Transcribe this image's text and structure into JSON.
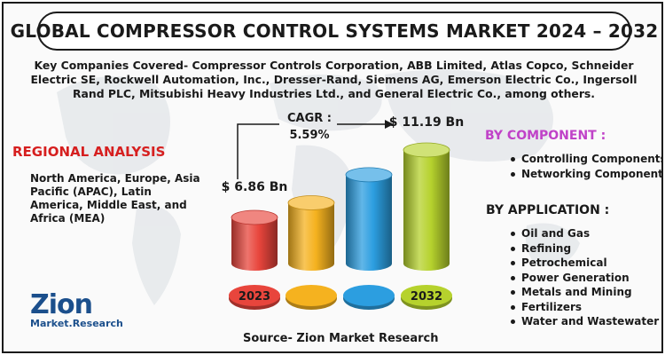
{
  "title": "GLOBAL COMPRESSOR CONTROL SYSTEMS MARKET 2024 – 2032",
  "key_companies": "Key Companies Covered- Compressor Controls Corporation, ABB Limited, Atlas Copco, Schneider Electric SE, Rockwell Automation, Inc., Dresser-Rand, Siemens AG, Emerson Electric Co., Ingersoll Rand PLC, Mitsubishi Heavy Industries Ltd., and General Electric Co., among others.",
  "regional": {
    "title": "REGIONAL ANALYSIS",
    "text": "North America, Europe, Asia Pacific (APAC), Latin America, Middle East, and Africa (MEA)"
  },
  "by_component": {
    "title": "BY COMPONENT :",
    "items": [
      "Controlling Components",
      "Networking Components"
    ]
  },
  "by_application": {
    "title": "BY APPLICATION :",
    "items": [
      "Oil and Gas",
      "Refining",
      "Petrochemical",
      "Power Generation",
      "Metals and Mining",
      "Fertilizers",
      "Water and Wastewater"
    ]
  },
  "source": "Source- Zion Market Research",
  "logo": {
    "main": "Zion",
    "sub": "Market.Research"
  },
  "colors": {
    "red": "#e8453c",
    "orange": "#f5b21f",
    "blue": "#2c9ee0",
    "green": "#b6d22d",
    "title_red": "#d61f1f",
    "component_purple": "#c042c8"
  },
  "chart_data": {
    "type": "bar",
    "categories": [
      "2023",
      "",
      "",
      "2032"
    ],
    "values": [
      6.86,
      7.8,
      9.6,
      11.19
    ],
    "value_labels": [
      "$ 6.86 Bn",
      "",
      "",
      "$ 11.19 Bn"
    ],
    "cagr_label": "CAGR :",
    "cagr_value": "5.59%",
    "ylim": [
      0,
      12
    ]
  }
}
